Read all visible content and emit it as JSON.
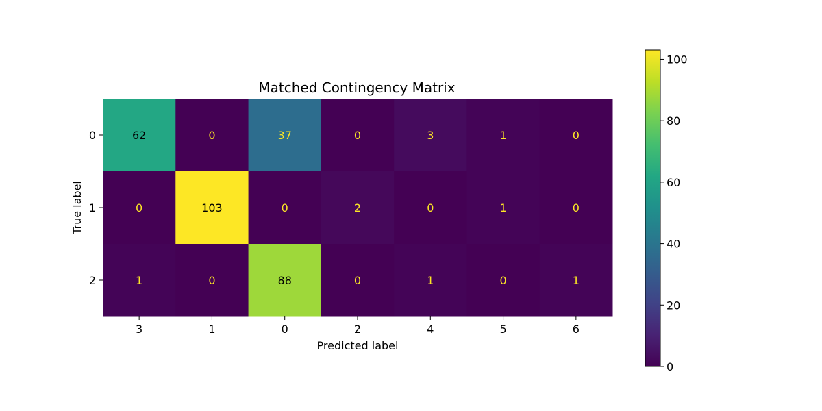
{
  "chart_data": {
    "type": "heatmap",
    "title": "Matched Contingency Matrix",
    "xlabel": "Predicted label",
    "ylabel": "True label",
    "x_categories": [
      "3",
      "1",
      "0",
      "2",
      "4",
      "5",
      "6"
    ],
    "y_categories": [
      "0",
      "1",
      "2"
    ],
    "values": [
      [
        62,
        0,
        37,
        0,
        3,
        1,
        0
      ],
      [
        0,
        103,
        0,
        2,
        0,
        1,
        0
      ],
      [
        1,
        0,
        88,
        0,
        1,
        0,
        1
      ]
    ],
    "colormap": "viridis",
    "colorbar": {
      "range": [
        0,
        103
      ],
      "ticks": [
        0,
        20,
        40,
        60,
        80,
        100
      ]
    },
    "grid": false,
    "legend": "colorbar-right"
  }
}
